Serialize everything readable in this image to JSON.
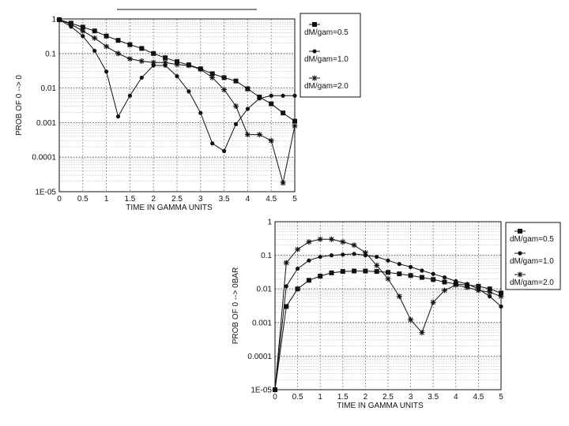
{
  "chart_data": [
    {
      "type": "line",
      "title": "",
      "xlabel": "TIME IN GAMMA UNITS",
      "ylabel": "PROB OF 0 --> 0",
      "yscale": "log",
      "xlim": [
        0,
        5
      ],
      "ylim": [
        1e-05,
        1
      ],
      "x_ticks": [
        "0",
        "0.5",
        "1",
        "1.5",
        "2",
        "2.5",
        "3",
        "3.5",
        "4",
        "4.5",
        "5"
      ],
      "y_ticks": [
        "1E-05",
        "0.0001",
        "0.001",
        "0.01",
        "0.1",
        "1"
      ],
      "grid": true,
      "legend_position": "right",
      "x": [
        0,
        0.25,
        0.5,
        0.75,
        1.0,
        1.25,
        1.5,
        1.75,
        2.0,
        2.25,
        2.5,
        2.75,
        3.0,
        3.25,
        3.5,
        3.75,
        4.0,
        4.25,
        4.5,
        4.75,
        5.0
      ],
      "series": [
        {
          "name": "dM/gam=0.5",
          "marker": "square",
          "values": [
            0.95,
            0.75,
            0.58,
            0.45,
            0.32,
            0.24,
            0.18,
            0.14,
            0.1,
            0.075,
            0.058,
            0.047,
            0.036,
            0.026,
            0.02,
            0.016,
            0.0095,
            0.0055,
            0.0035,
            0.0019,
            0.0011
          ]
        },
        {
          "name": "dM/gam=1.0",
          "marker": "dot",
          "values": [
            0.95,
            0.6,
            0.32,
            0.12,
            0.03,
            0.0015,
            0.006,
            0.02,
            0.045,
            0.045,
            0.022,
            0.008,
            0.0019,
            0.00025,
            0.00015,
            0.0009,
            0.0025,
            0.005,
            0.006,
            0.006,
            0.006
          ]
        },
        {
          "name": "dM/gam=2.0",
          "marker": "asterisk",
          "values": [
            0.95,
            0.7,
            0.45,
            0.28,
            0.16,
            0.1,
            0.07,
            0.06,
            0.055,
            0.055,
            0.048,
            0.045,
            0.035,
            0.02,
            0.009,
            0.003,
            0.00045,
            0.00045,
            0.0003,
            1.8e-05,
            0.0008
          ]
        }
      ]
    },
    {
      "type": "line",
      "title": "",
      "xlabel": "TIME IN GAMMA UNITS",
      "ylabel": "PROB OF 0 --> 0BAR",
      "yscale": "log",
      "xlim": [
        0,
        5
      ],
      "ylim": [
        1e-05,
        1
      ],
      "x_ticks": [
        "0",
        "0.5",
        "1",
        "1.5",
        "2",
        "2.5",
        "3",
        "3.5",
        "4",
        "4.5",
        "5"
      ],
      "y_ticks": [
        "1E-05",
        "0.0001",
        "0.001",
        "0.01",
        "0.1",
        "1"
      ],
      "grid": true,
      "legend_position": "right",
      "x": [
        0,
        0.25,
        0.5,
        0.75,
        1.0,
        1.25,
        1.5,
        1.75,
        2.0,
        2.25,
        2.5,
        2.75,
        3.0,
        3.25,
        3.5,
        3.75,
        4.0,
        4.25,
        4.5,
        4.75,
        5.0
      ],
      "series": [
        {
          "name": "dM/gam=0.5",
          "marker": "square",
          "values": [
            1e-05,
            0.003,
            0.01,
            0.018,
            0.024,
            0.03,
            0.033,
            0.034,
            0.034,
            0.033,
            0.031,
            0.028,
            0.025,
            0.022,
            0.019,
            0.016,
            0.014,
            0.013,
            0.012,
            0.01,
            0.0075
          ]
        },
        {
          "name": "dM/gam=1.0",
          "marker": "dot",
          "values": [
            1e-05,
            0.012,
            0.04,
            0.07,
            0.09,
            0.1,
            0.105,
            0.11,
            0.1,
            0.09,
            0.07,
            0.055,
            0.045,
            0.035,
            0.028,
            0.022,
            0.017,
            0.014,
            0.01,
            0.006,
            0.003
          ]
        },
        {
          "name": "dM/gam=2.0",
          "marker": "asterisk",
          "values": [
            1e-05,
            0.06,
            0.15,
            0.25,
            0.3,
            0.3,
            0.25,
            0.2,
            0.12,
            0.05,
            0.02,
            0.006,
            0.0012,
            0.0005,
            0.004,
            0.009,
            0.013,
            0.011,
            0.009,
            0.008,
            0.006
          ]
        }
      ]
    }
  ]
}
